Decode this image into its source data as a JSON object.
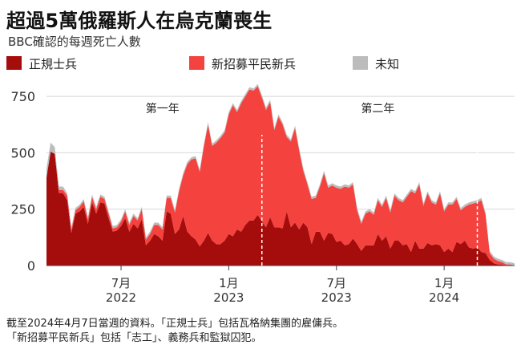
{
  "colors": {
    "regular": "#a50c0c",
    "recruits": "#f4423e",
    "unknown": "#bcbcbc",
    "grid": "#d8d8d8",
    "axis": "#444444",
    "marker": "#ffffff"
  },
  "chart_data": {
    "type": "area",
    "stacked": true,
    "title": "超過5萬俄羅斯人在烏克蘭喪生",
    "subtitle": "BBC確認的每週死亡人數",
    "xlabel": "",
    "ylabel": "",
    "ylim": [
      0,
      800
    ],
    "yticks": [
      {
        "value": 0,
        "label": "0"
      },
      {
        "value": 250,
        "label": "250"
      },
      {
        "value": 500,
        "label": "500"
      },
      {
        "value": 750,
        "label": "750"
      }
    ],
    "xlim": [
      0,
      113
    ],
    "xticks": [
      {
        "value": 18,
        "month": "7月",
        "year": "2022"
      },
      {
        "value": 44,
        "month": "1月",
        "year": "2023"
      },
      {
        "value": 70,
        "month": "7月",
        "year": "2023"
      },
      {
        "value": 96,
        "month": "1月",
        "year": "2024"
      }
    ],
    "legend_position": "top",
    "grid": true,
    "annotations": [
      {
        "x": 52,
        "label": "第一年",
        "label_x": 28
      },
      {
        "x": 104,
        "label": "第二年",
        "label_x": 80
      }
    ],
    "x": [
      0,
      1,
      2,
      3,
      4,
      5,
      6,
      7,
      8,
      9,
      10,
      11,
      12,
      13,
      14,
      15,
      16,
      17,
      18,
      19,
      20,
      21,
      22,
      23,
      24,
      25,
      26,
      27,
      28,
      29,
      30,
      31,
      32,
      33,
      34,
      35,
      36,
      37,
      38,
      39,
      40,
      41,
      42,
      43,
      44,
      45,
      46,
      47,
      48,
      49,
      50,
      51,
      52,
      53,
      54,
      55,
      56,
      57,
      58,
      59,
      60,
      61,
      62,
      63,
      64,
      65,
      66,
      67,
      68,
      69,
      70,
      71,
      72,
      73,
      74,
      75,
      76,
      77,
      78,
      79,
      80,
      81,
      82,
      83,
      84,
      85,
      86,
      87,
      88,
      89,
      90,
      91,
      92,
      93,
      94,
      95,
      96,
      97,
      98,
      99,
      100,
      101,
      102,
      103,
      104,
      105,
      106,
      107,
      108,
      109,
      110,
      111,
      112,
      113
    ],
    "series": [
      {
        "name": "正規士兵",
        "color_key": "regular",
        "values": [
          390,
          505,
          495,
          320,
          320,
          290,
          145,
          230,
          240,
          260,
          185,
          280,
          230,
          280,
          275,
          210,
          150,
          155,
          175,
          210,
          150,
          185,
          165,
          205,
          90,
          110,
          140,
          130,
          110,
          240,
          230,
          140,
          160,
          220,
          150,
          130,
          115,
          85,
          110,
          145,
          110,
          95,
          95,
          110,
          140,
          130,
          160,
          150,
          180,
          200,
          200,
          225,
          195,
          170,
          215,
          170,
          170,
          165,
          240,
          170,
          190,
          160,
          190,
          170,
          95,
          150,
          150,
          110,
          145,
          140,
          105,
          110,
          90,
          95,
          120,
          95,
          65,
          90,
          90,
          90,
          140,
          110,
          130,
          75,
          110,
          110,
          90,
          95,
          60,
          110,
          75,
          75,
          100,
          90,
          95,
          90,
          60,
          75,
          60,
          105,
          95,
          110,
          80,
          75,
          80,
          60,
          55,
          25,
          10,
          5,
          5,
          0,
          0,
          0
        ]
      },
      {
        "name": "新招募平民新兵",
        "color_key": "recruits",
        "values": [
          0,
          0,
          0,
          15,
          15,
          20,
          15,
          15,
          20,
          25,
          20,
          25,
          20,
          25,
          20,
          20,
          15,
          15,
          20,
          30,
          30,
          35,
          35,
          45,
          25,
          30,
          40,
          50,
          50,
          60,
          70,
          95,
          170,
          180,
          300,
          340,
          360,
          330,
          420,
          480,
          420,
          450,
          470,
          480,
          530,
          580,
          520,
          570,
          570,
          580,
          575,
          570,
          550,
          520,
          510,
          430,
          490,
          460,
          330,
          380,
          420,
          350,
          230,
          190,
          200,
          150,
          200,
          300,
          200,
          215,
          240,
          230,
          260,
          250,
          240,
          150,
          120,
          140,
          150,
          135,
          150,
          150,
          170,
          160,
          200,
          180,
          190,
          210,
          270,
          210,
          285,
          190,
          220,
          190,
          175,
          230,
          180,
          195,
          210,
          190,
          150,
          150,
          190,
          200,
          200,
          230,
          170,
          30,
          20,
          15,
          10,
          5,
          5,
          0
        ]
      },
      {
        "name": "未知",
        "color_key": "unknown",
        "values": [
          40,
          40,
          30,
          15,
          15,
          10,
          10,
          10,
          10,
          10,
          10,
          10,
          10,
          10,
          10,
          10,
          10,
          10,
          10,
          10,
          10,
          10,
          10,
          10,
          10,
          10,
          10,
          10,
          10,
          10,
          10,
          10,
          10,
          10,
          10,
          10,
          10,
          10,
          10,
          10,
          10,
          10,
          10,
          10,
          10,
          10,
          10,
          10,
          10,
          10,
          10,
          10,
          10,
          10,
          10,
          10,
          10,
          10,
          10,
          10,
          10,
          10,
          10,
          10,
          10,
          10,
          10,
          10,
          10,
          10,
          10,
          10,
          10,
          10,
          10,
          10,
          10,
          10,
          10,
          10,
          10,
          10,
          10,
          10,
          10,
          10,
          10,
          10,
          10,
          10,
          10,
          10,
          10,
          10,
          10,
          10,
          10,
          10,
          10,
          10,
          10,
          10,
          10,
          10,
          10,
          10,
          10,
          10,
          10,
          10,
          10,
          10,
          10,
          10
        ]
      }
    ]
  },
  "footnote": {
    "line1": "截至2024年4月7日當週的資料。「正規士兵」包括瓦格納集團的雇傭兵。",
    "line2": "「新招募平民新兵」包括「志工」、義務兵和監獄囚犯。"
  }
}
